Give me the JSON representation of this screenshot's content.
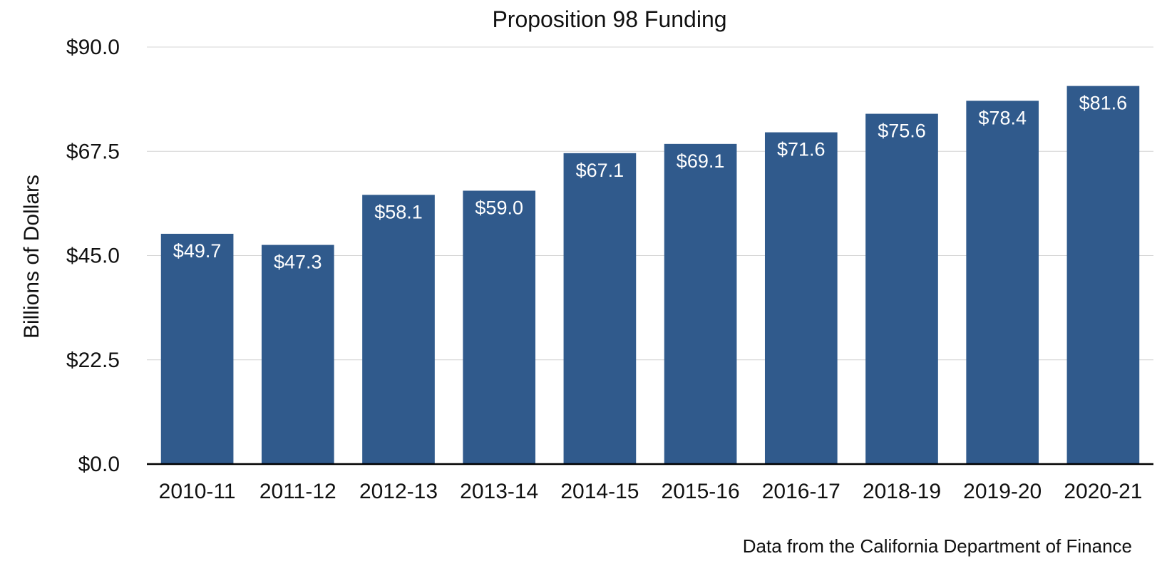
{
  "chart_data": {
    "type": "bar",
    "title": "Proposition 98 Funding",
    "ylabel": "Billions of Dollars",
    "xlabel": "",
    "categories": [
      "2010-11",
      "2011-12",
      "2012-13",
      "2013-14",
      "2014-15",
      "2015-16",
      "2016-17",
      "2018-19",
      "2019-20",
      "2020-21"
    ],
    "values": [
      49.7,
      47.3,
      58.1,
      59.0,
      67.1,
      69.1,
      71.6,
      75.6,
      78.4,
      81.6
    ],
    "data_labels": [
      "$49.7",
      "$47.3",
      "$58.1",
      "$59.0",
      "$67.1",
      "$69.1",
      "$71.6",
      "$75.6",
      "$78.4",
      "$81.6"
    ],
    "ylim": [
      0,
      90
    ],
    "yticks": [
      0,
      22.5,
      45,
      67.5,
      90
    ],
    "ytick_labels": [
      "$0.0",
      "$22.5",
      "$45.0",
      "$67.5",
      "$90.0"
    ],
    "grid": true,
    "legend": "none",
    "bar_color": "#305a8c",
    "source_note": "Data from the California Department of Finance"
  }
}
